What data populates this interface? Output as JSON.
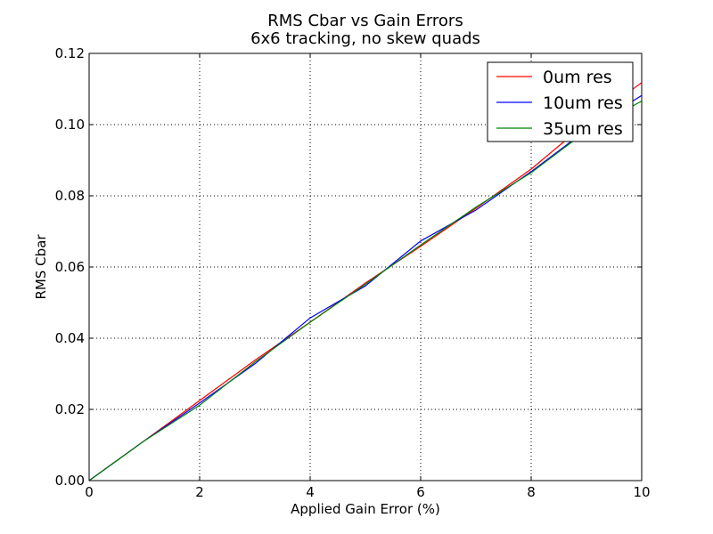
{
  "chart_data": {
    "type": "line",
    "title": "RMS Cbar vs Gain Errors",
    "subtitle": "6x6 tracking, no skew quads",
    "xlabel": "Applied Gain Error (%)",
    "ylabel": "RMS Cbar",
    "xlim": [
      0,
      10
    ],
    "ylim": [
      0,
      0.12
    ],
    "x_ticks": [
      "0",
      "2",
      "4",
      "6",
      "8",
      "10"
    ],
    "y_ticks": [
      "0.00",
      "0.02",
      "0.04",
      "0.06",
      "0.08",
      "0.10",
      "0.12"
    ],
    "grid": true,
    "legend_position": "top-right",
    "series": [
      {
        "name": "0um res",
        "color": "#ff0000",
        "x": [
          0,
          1,
          2,
          3,
          4,
          5,
          6,
          7,
          8,
          9,
          10
        ],
        "y": [
          0.0,
          0.0112,
          0.0225,
          0.0338,
          0.0445,
          0.0555,
          0.0658,
          0.0765,
          0.0875,
          0.1005,
          0.1118
        ]
      },
      {
        "name": "10um res",
        "color": "#0000ff",
        "x": [
          0,
          1,
          2,
          3,
          4,
          5,
          6,
          7,
          8,
          9,
          10
        ],
        "y": [
          0.0,
          0.0112,
          0.0218,
          0.0328,
          0.0457,
          0.0547,
          0.0673,
          0.076,
          0.0868,
          0.0985,
          0.1082
        ]
      },
      {
        "name": "35um res",
        "color": "#008000",
        "x": [
          0,
          1,
          2,
          3,
          4,
          5,
          6,
          7,
          8,
          9,
          10
        ],
        "y": [
          0.0,
          0.0112,
          0.0212,
          0.0333,
          0.0445,
          0.0552,
          0.0662,
          0.0768,
          0.0865,
          0.0982,
          0.1066
        ]
      }
    ]
  }
}
